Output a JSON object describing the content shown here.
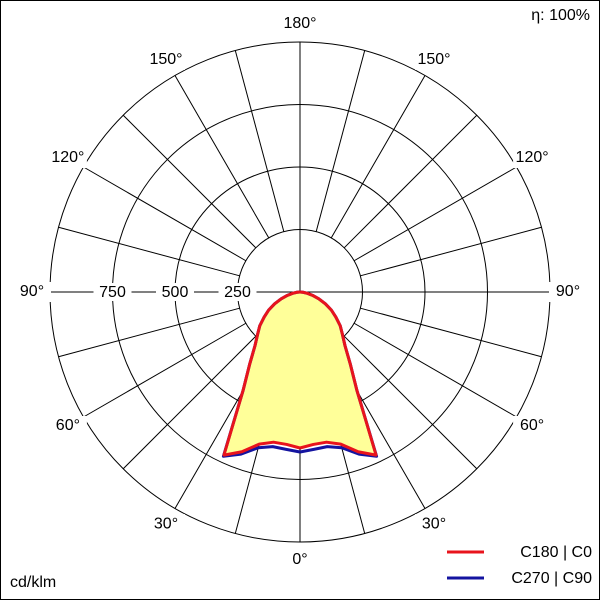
{
  "chart_data": {
    "type": "polar",
    "efficiency_label": "η: 100%",
    "unit_label": "cd/klm",
    "rlim": [
      0,
      1000
    ],
    "rticks": [
      250,
      500,
      750
    ],
    "angle_ticks": [
      {
        "value": 0,
        "label": "0°"
      },
      {
        "value": 30,
        "label": "30°"
      },
      {
        "value": 60,
        "label": "60°"
      },
      {
        "value": 90,
        "label": "90°"
      },
      {
        "value": 120,
        "label": "120°"
      },
      {
        "value": 150,
        "label": "150°"
      },
      {
        "value": 180,
        "label": "180°"
      }
    ],
    "gamma": [
      0,
      5,
      10,
      15,
      20,
      25,
      30,
      35,
      40,
      45,
      50,
      55,
      60,
      65,
      70,
      75,
      80,
      85,
      90
    ],
    "fill_color": "#ffff99",
    "series": [
      {
        "name": "C180 | C0",
        "color": "#e8141c",
        "values": [
          624,
          612,
          610,
          630,
          680,
          720,
          456,
          350,
          280,
          240,
          210,
          175,
          145,
          112,
          80,
          52,
          30,
          12,
          0
        ]
      },
      {
        "name": "C270 | C90",
        "color": "#1414a0",
        "values": [
          640,
          632,
          628,
          645,
          690,
          725,
          456,
          350,
          280,
          240,
          210,
          175,
          145,
          112,
          80,
          52,
          30,
          12,
          0
        ]
      }
    ]
  }
}
